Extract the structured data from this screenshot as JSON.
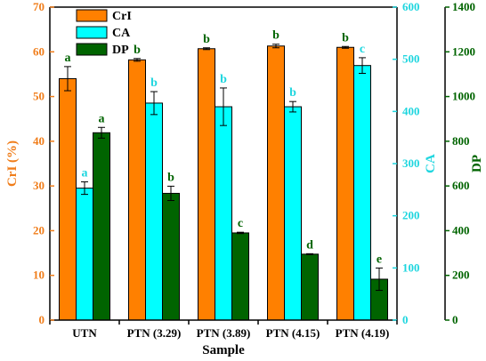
{
  "chart_data": {
    "type": "bar",
    "title": "",
    "xlabel": "Sample",
    "categories": [
      "UTN",
      "PTN (3.29)",
      "PTN (3.89)",
      "PTN (4.15)",
      "PTN (4.19)"
    ],
    "axes": {
      "left": {
        "label": "CrI (%)",
        "range": [
          0,
          70
        ],
        "ticks": [
          0,
          10,
          20,
          30,
          40,
          50,
          60,
          70
        ],
        "color": "#f07d1a"
      },
      "right1": {
        "label": "CA",
        "range": [
          0,
          600
        ],
        "ticks": [
          0,
          100,
          200,
          300,
          400,
          500,
          600
        ],
        "color": "#1fd6df"
      },
      "right2": {
        "label": "DP",
        "range": [
          0,
          1400
        ],
        "ticks": [
          0,
          200,
          400,
          600,
          800,
          1000,
          1200,
          1400
        ],
        "color": "#006400"
      }
    },
    "series": [
      {
        "name": "CrI",
        "axis": "left",
        "color": "#ff8000",
        "values": [
          54.0,
          58.2,
          60.7,
          61.3,
          61.0
        ],
        "errors": [
          2.7,
          0.3,
          0.2,
          0.4,
          0.2
        ],
        "letters": [
          "a",
          "b",
          "b",
          "b",
          "b"
        ],
        "letter_color": "#006400"
      },
      {
        "name": "CA",
        "axis": "right1",
        "color": "#00ffff",
        "values": [
          253,
          416,
          409,
          409,
          488
        ],
        "errors": [
          12,
          22,
          36,
          10,
          15
        ],
        "letters": [
          "a",
          "b",
          "b",
          "b",
          "c"
        ],
        "letter_color": "#1fd6df"
      },
      {
        "name": "DP",
        "axis": "right2",
        "color": "#006400",
        "values": [
          838,
          567,
          390,
          295,
          183
        ],
        "errors": [
          24,
          32,
          3,
          2,
          50
        ],
        "letters": [
          "a",
          "b",
          "c",
          "d",
          "e"
        ],
        "letter_color": "#006400"
      }
    ],
    "legend": {
      "position": "top-left",
      "entries": [
        "CrI",
        "CA",
        "DP"
      ]
    },
    "grid": false
  }
}
